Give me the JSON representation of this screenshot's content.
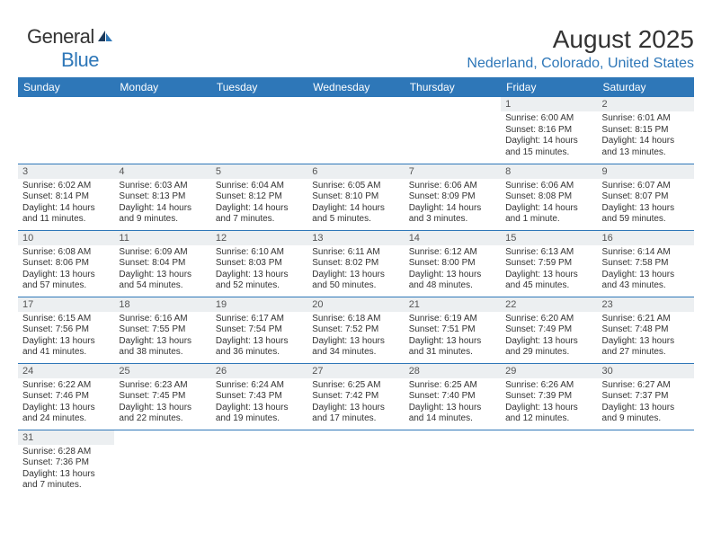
{
  "brand": {
    "part1": "General",
    "part2": "Blue"
  },
  "title": "August 2025",
  "location": "Nederland, Colorado, United States",
  "dayHeaders": [
    "Sunday",
    "Monday",
    "Tuesday",
    "Wednesday",
    "Thursday",
    "Friday",
    "Saturday"
  ],
  "colors": {
    "accent": "#2e77b8",
    "dayHeaderBg": "#eceff1"
  },
  "weeks": [
    [
      null,
      null,
      null,
      null,
      null,
      {
        "n": "1",
        "sr": "6:00 AM",
        "ss": "8:16 PM",
        "dl": "14 hours and 15 minutes."
      },
      {
        "n": "2",
        "sr": "6:01 AM",
        "ss": "8:15 PM",
        "dl": "14 hours and 13 minutes."
      }
    ],
    [
      {
        "n": "3",
        "sr": "6:02 AM",
        "ss": "8:14 PM",
        "dl": "14 hours and 11 minutes."
      },
      {
        "n": "4",
        "sr": "6:03 AM",
        "ss": "8:13 PM",
        "dl": "14 hours and 9 minutes."
      },
      {
        "n": "5",
        "sr": "6:04 AM",
        "ss": "8:12 PM",
        "dl": "14 hours and 7 minutes."
      },
      {
        "n": "6",
        "sr": "6:05 AM",
        "ss": "8:10 PM",
        "dl": "14 hours and 5 minutes."
      },
      {
        "n": "7",
        "sr": "6:06 AM",
        "ss": "8:09 PM",
        "dl": "14 hours and 3 minutes."
      },
      {
        "n": "8",
        "sr": "6:06 AM",
        "ss": "8:08 PM",
        "dl": "14 hours and 1 minute."
      },
      {
        "n": "9",
        "sr": "6:07 AM",
        "ss": "8:07 PM",
        "dl": "13 hours and 59 minutes."
      }
    ],
    [
      {
        "n": "10",
        "sr": "6:08 AM",
        "ss": "8:06 PM",
        "dl": "13 hours and 57 minutes."
      },
      {
        "n": "11",
        "sr": "6:09 AM",
        "ss": "8:04 PM",
        "dl": "13 hours and 54 minutes."
      },
      {
        "n": "12",
        "sr": "6:10 AM",
        "ss": "8:03 PM",
        "dl": "13 hours and 52 minutes."
      },
      {
        "n": "13",
        "sr": "6:11 AM",
        "ss": "8:02 PM",
        "dl": "13 hours and 50 minutes."
      },
      {
        "n": "14",
        "sr": "6:12 AM",
        "ss": "8:00 PM",
        "dl": "13 hours and 48 minutes."
      },
      {
        "n": "15",
        "sr": "6:13 AM",
        "ss": "7:59 PM",
        "dl": "13 hours and 45 minutes."
      },
      {
        "n": "16",
        "sr": "6:14 AM",
        "ss": "7:58 PM",
        "dl": "13 hours and 43 minutes."
      }
    ],
    [
      {
        "n": "17",
        "sr": "6:15 AM",
        "ss": "7:56 PM",
        "dl": "13 hours and 41 minutes."
      },
      {
        "n": "18",
        "sr": "6:16 AM",
        "ss": "7:55 PM",
        "dl": "13 hours and 38 minutes."
      },
      {
        "n": "19",
        "sr": "6:17 AM",
        "ss": "7:54 PM",
        "dl": "13 hours and 36 minutes."
      },
      {
        "n": "20",
        "sr": "6:18 AM",
        "ss": "7:52 PM",
        "dl": "13 hours and 34 minutes."
      },
      {
        "n": "21",
        "sr": "6:19 AM",
        "ss": "7:51 PM",
        "dl": "13 hours and 31 minutes."
      },
      {
        "n": "22",
        "sr": "6:20 AM",
        "ss": "7:49 PM",
        "dl": "13 hours and 29 minutes."
      },
      {
        "n": "23",
        "sr": "6:21 AM",
        "ss": "7:48 PM",
        "dl": "13 hours and 27 minutes."
      }
    ],
    [
      {
        "n": "24",
        "sr": "6:22 AM",
        "ss": "7:46 PM",
        "dl": "13 hours and 24 minutes."
      },
      {
        "n": "25",
        "sr": "6:23 AM",
        "ss": "7:45 PM",
        "dl": "13 hours and 22 minutes."
      },
      {
        "n": "26",
        "sr": "6:24 AM",
        "ss": "7:43 PM",
        "dl": "13 hours and 19 minutes."
      },
      {
        "n": "27",
        "sr": "6:25 AM",
        "ss": "7:42 PM",
        "dl": "13 hours and 17 minutes."
      },
      {
        "n": "28",
        "sr": "6:25 AM",
        "ss": "7:40 PM",
        "dl": "13 hours and 14 minutes."
      },
      {
        "n": "29",
        "sr": "6:26 AM",
        "ss": "7:39 PM",
        "dl": "13 hours and 12 minutes."
      },
      {
        "n": "30",
        "sr": "6:27 AM",
        "ss": "7:37 PM",
        "dl": "13 hours and 9 minutes."
      }
    ],
    [
      {
        "n": "31",
        "sr": "6:28 AM",
        "ss": "7:36 PM",
        "dl": "13 hours and 7 minutes."
      },
      null,
      null,
      null,
      null,
      null,
      null
    ]
  ],
  "labels": {
    "sunrise": "Sunrise:",
    "sunset": "Sunset:",
    "daylight": "Daylight:"
  }
}
